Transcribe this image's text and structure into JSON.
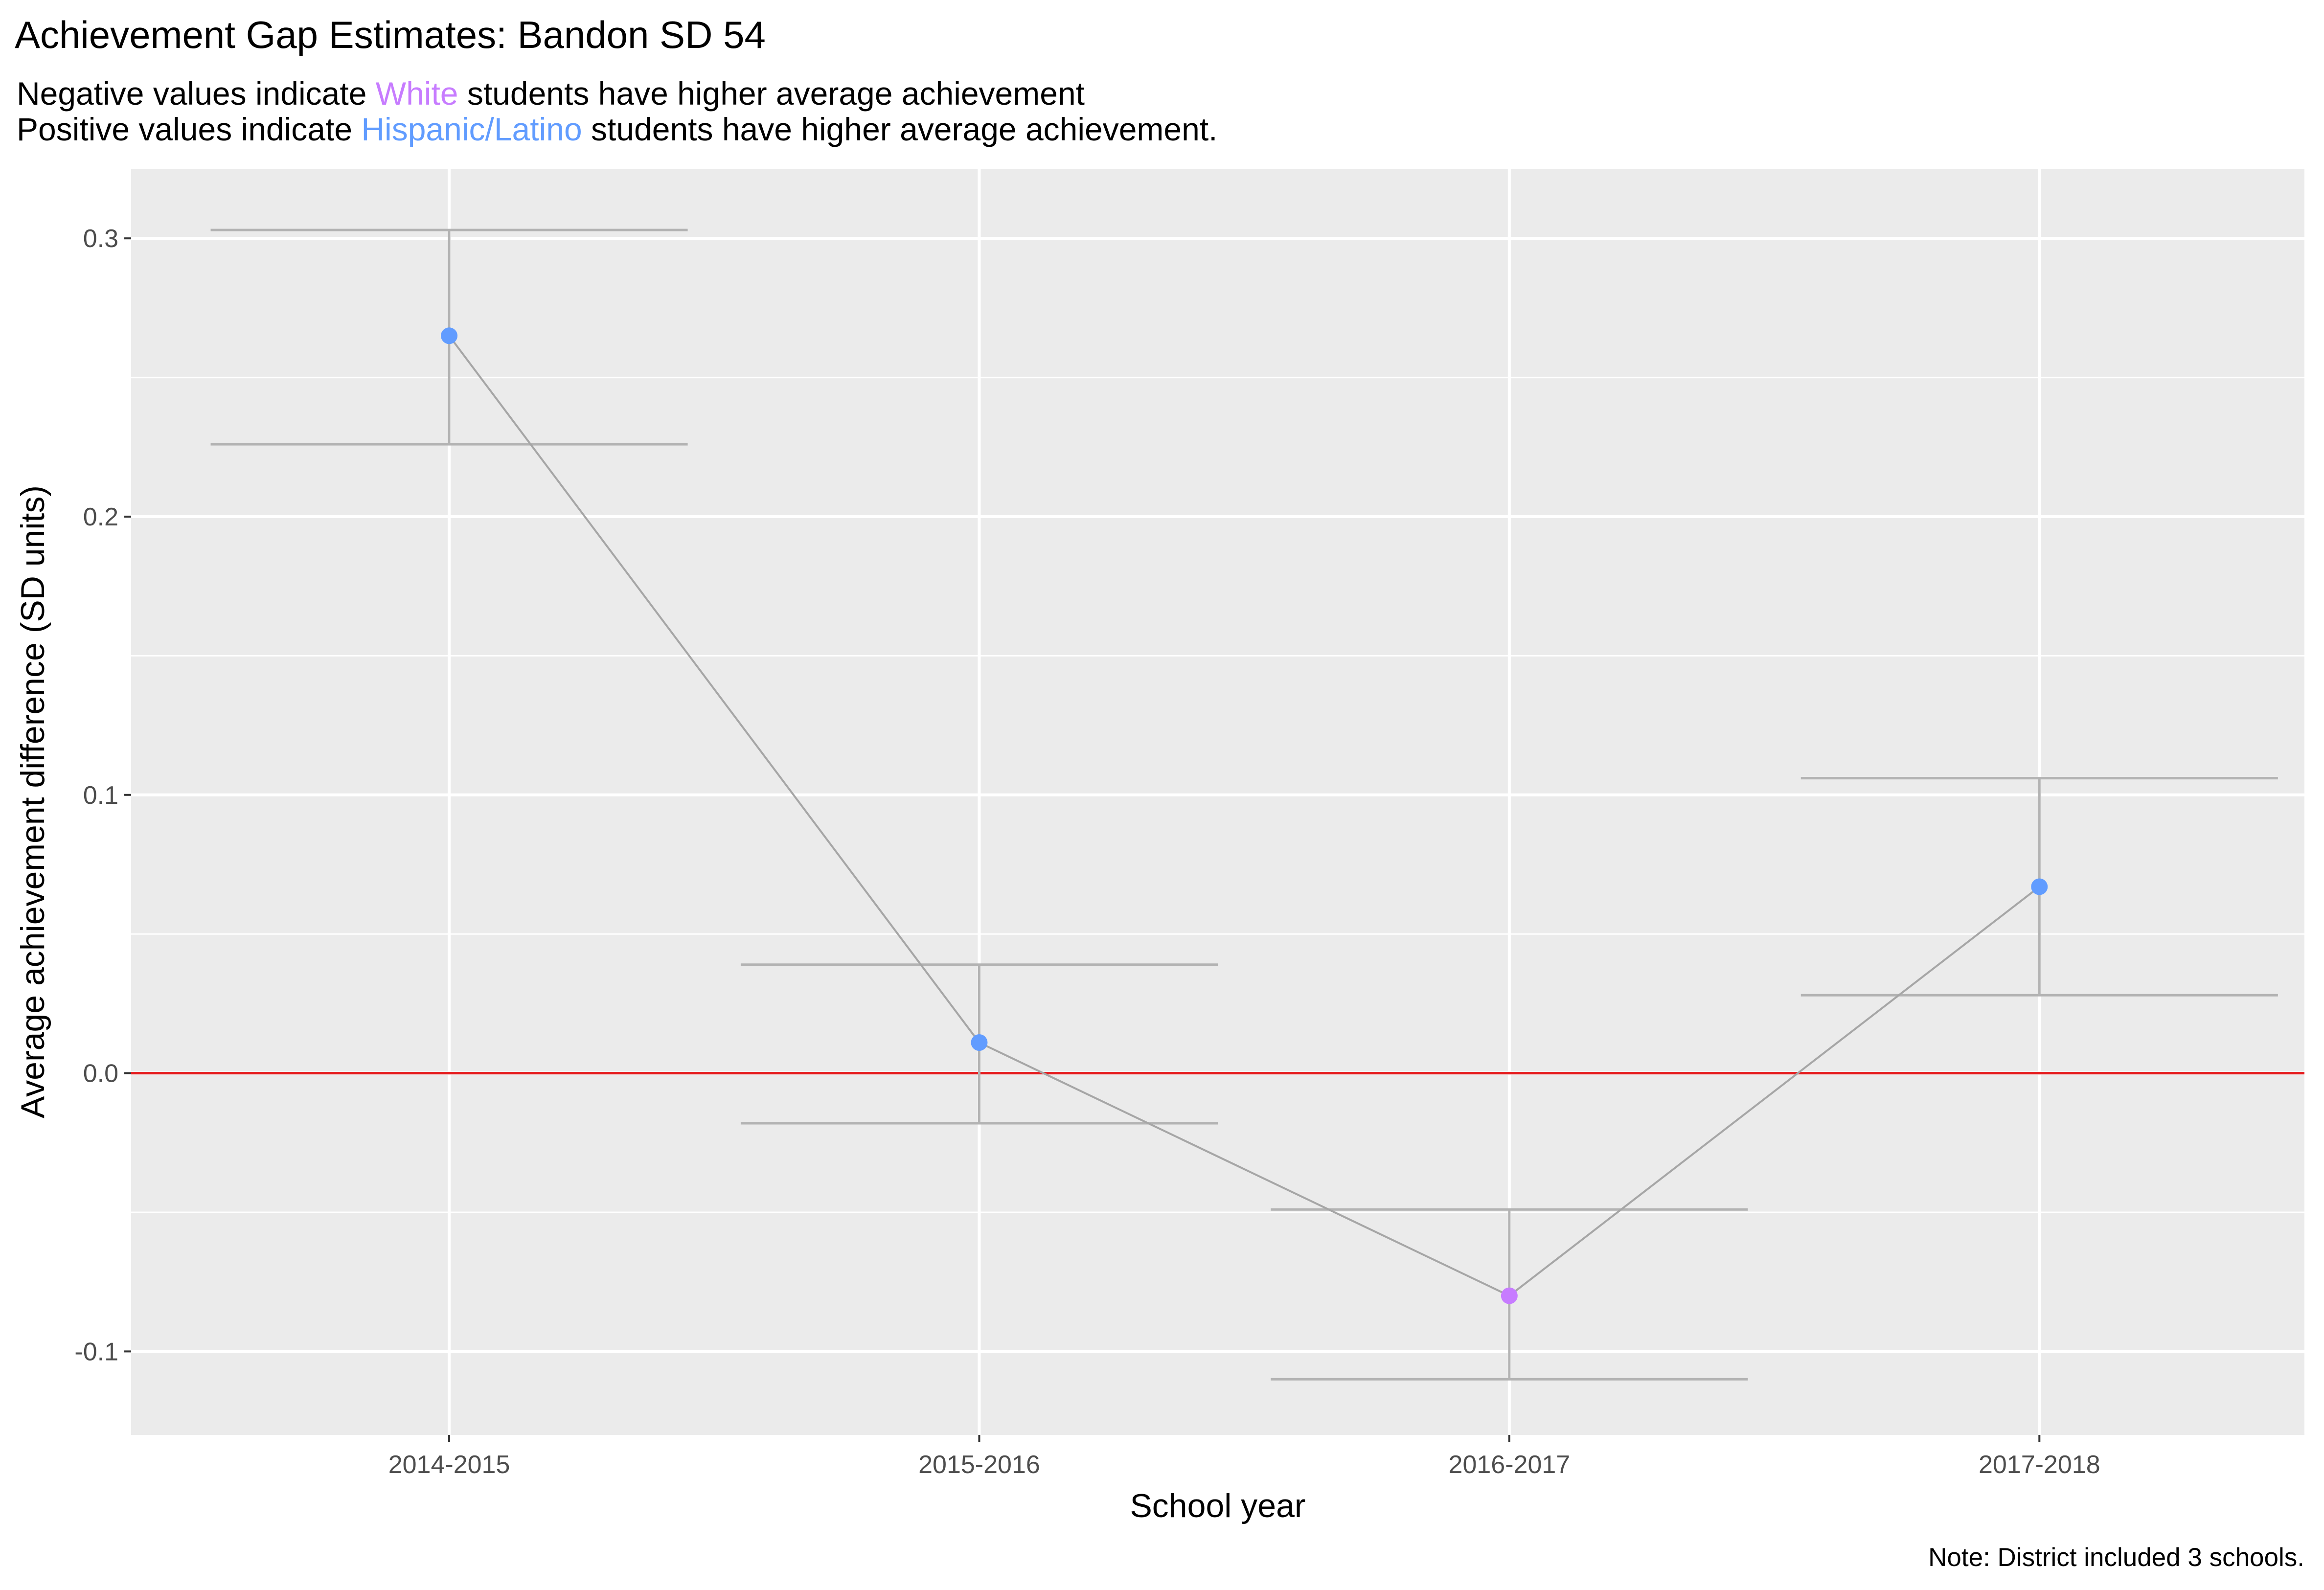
{
  "chart_data": {
    "type": "scatter",
    "title": "Achievement Gap Estimates: Bandon SD 54",
    "subtitle": {
      "line1": {
        "before": "Negative values indicate ",
        "highlight": "White",
        "after": " students have higher average achievement"
      },
      "line2": {
        "before": "Positive values indicate ",
        "highlight": "Hispanic/Latino",
        "after": " students have higher average achievement."
      }
    },
    "xlabel": "School year",
    "ylabel": "Average achievement difference (SD units)",
    "caption": "Note: District included 3 schools.",
    "categories": [
      "2014-2015",
      "2015-2016",
      "2016-2017",
      "2017-2018"
    ],
    "yticks": [
      -0.1,
      0.0,
      0.1,
      0.2,
      0.3
    ],
    "ytick_labels": [
      "-0.1",
      "0.0",
      "0.1",
      "0.2",
      "0.3"
    ],
    "ylim": [
      -0.13,
      0.325
    ],
    "reference_line": 0.0,
    "series": [
      {
        "values": [
          0.265,
          0.011,
          -0.08,
          0.067
        ],
        "lower": [
          0.226,
          -0.018,
          -0.11,
          0.028
        ],
        "upper": [
          0.303,
          0.039,
          -0.049,
          0.106
        ],
        "point_groups": [
          "Hispanic/Latino",
          "Hispanic/Latino",
          "White",
          "Hispanic/Latino"
        ]
      }
    ],
    "grid": true,
    "colors": {
      "White": "#C77CFF",
      "Hispanic/Latino": "#619CFF",
      "reference_line": "#E41A1C",
      "line": "#A6A6A6",
      "errorbar": "#B3B3B3",
      "panel": "#EBEBEB",
      "gridline": "#FFFFFF"
    }
  }
}
